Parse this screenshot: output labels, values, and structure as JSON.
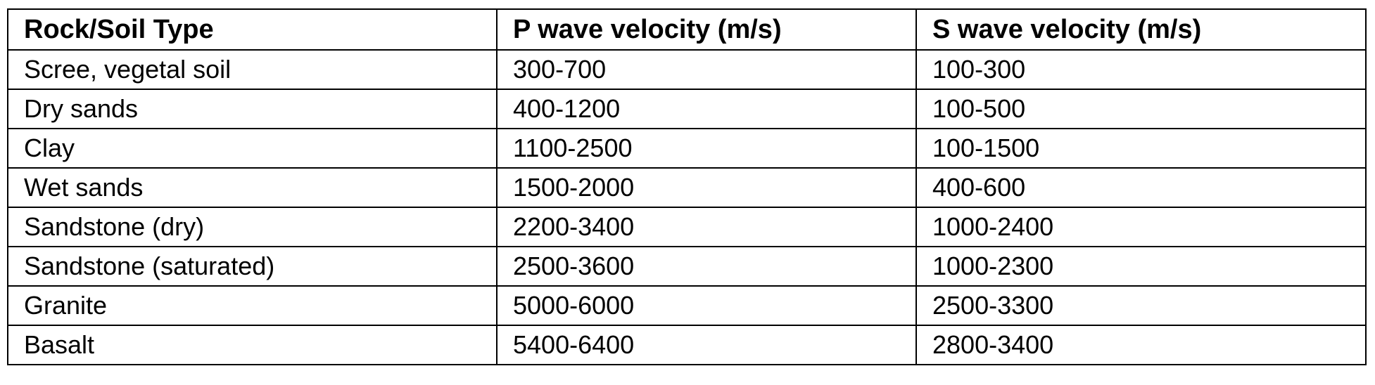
{
  "table": {
    "headers": [
      "Rock/Soil Type",
      "P wave velocity (m/s)",
      "S wave velocity (m/s)"
    ],
    "rows": [
      [
        "Scree, vegetal soil",
        "300-700",
        "100-300"
      ],
      [
        "Dry sands",
        "400-1200",
        "100-500"
      ],
      [
        "Clay",
        "1100-2500",
        "100-1500"
      ],
      [
        "Wet sands",
        "1500-2000",
        "400-600"
      ],
      [
        "Sandstone (dry)",
        "2200-3400",
        "1000-2400"
      ],
      [
        "Sandstone (saturated)",
        "2500-3600",
        "1000-2300"
      ],
      [
        "Granite",
        "5000-6000",
        "2500-3300"
      ],
      [
        "Basalt",
        "5400-6400",
        "2800-3400"
      ]
    ]
  }
}
